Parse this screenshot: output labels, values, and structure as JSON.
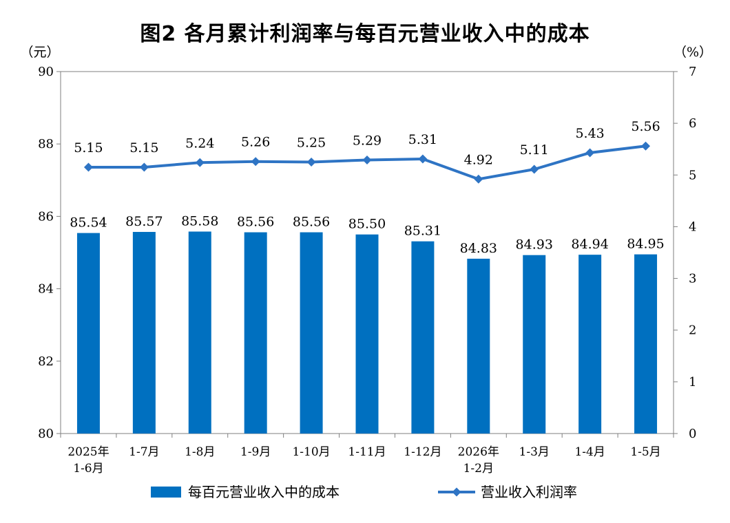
{
  "chart_data": {
    "type": "bar+line",
    "title": "图2 各月累计利润率与每百元营业收入中的成本",
    "left_axis": {
      "unit": "（元）",
      "ylim": [
        80,
        90
      ],
      "ticks": [
        "80",
        "82",
        "84",
        "86",
        "88",
        "90"
      ]
    },
    "right_axis": {
      "unit": "（%）",
      "ylim": [
        0,
        7
      ],
      "ticks": [
        "0",
        "1",
        "2",
        "3",
        "4",
        "5",
        "6",
        "7"
      ]
    },
    "categories": [
      [
        "2025年",
        "1-6月"
      ],
      [
        "1-7月"
      ],
      [
        "1-8月"
      ],
      [
        "1-9月"
      ],
      [
        "1-10月"
      ],
      [
        "1-11月"
      ],
      [
        "1-12月"
      ],
      [
        "2026年",
        "1-2月"
      ],
      [
        "1-3月"
      ],
      [
        "1-4月"
      ],
      [
        "1-5月"
      ]
    ],
    "series": [
      {
        "name": "每百元营业收入中的成本",
        "type": "bar",
        "axis": "left",
        "color": "#0070C0",
        "values": [
          85.54,
          85.57,
          85.58,
          85.56,
          85.56,
          85.5,
          85.31,
          84.83,
          84.93,
          84.94,
          84.95
        ],
        "labels": [
          "85.54",
          "85.57",
          "85.58",
          "85.56",
          "85.56",
          "85.50",
          "85.31",
          "84.83",
          "84.93",
          "84.94",
          "84.95"
        ]
      },
      {
        "name": "营业收入利润率",
        "type": "line",
        "axis": "right",
        "color": "#2E74C4",
        "values": [
          5.15,
          5.15,
          5.24,
          5.26,
          5.25,
          5.29,
          5.31,
          4.92,
          5.11,
          5.43,
          5.56
        ],
        "labels": [
          "5.15",
          "5.15",
          "5.24",
          "5.26",
          "5.25",
          "5.29",
          "5.31",
          "4.92",
          "5.11",
          "5.43",
          "5.56"
        ]
      }
    ],
    "legend_position": "bottom",
    "grid": false
  }
}
